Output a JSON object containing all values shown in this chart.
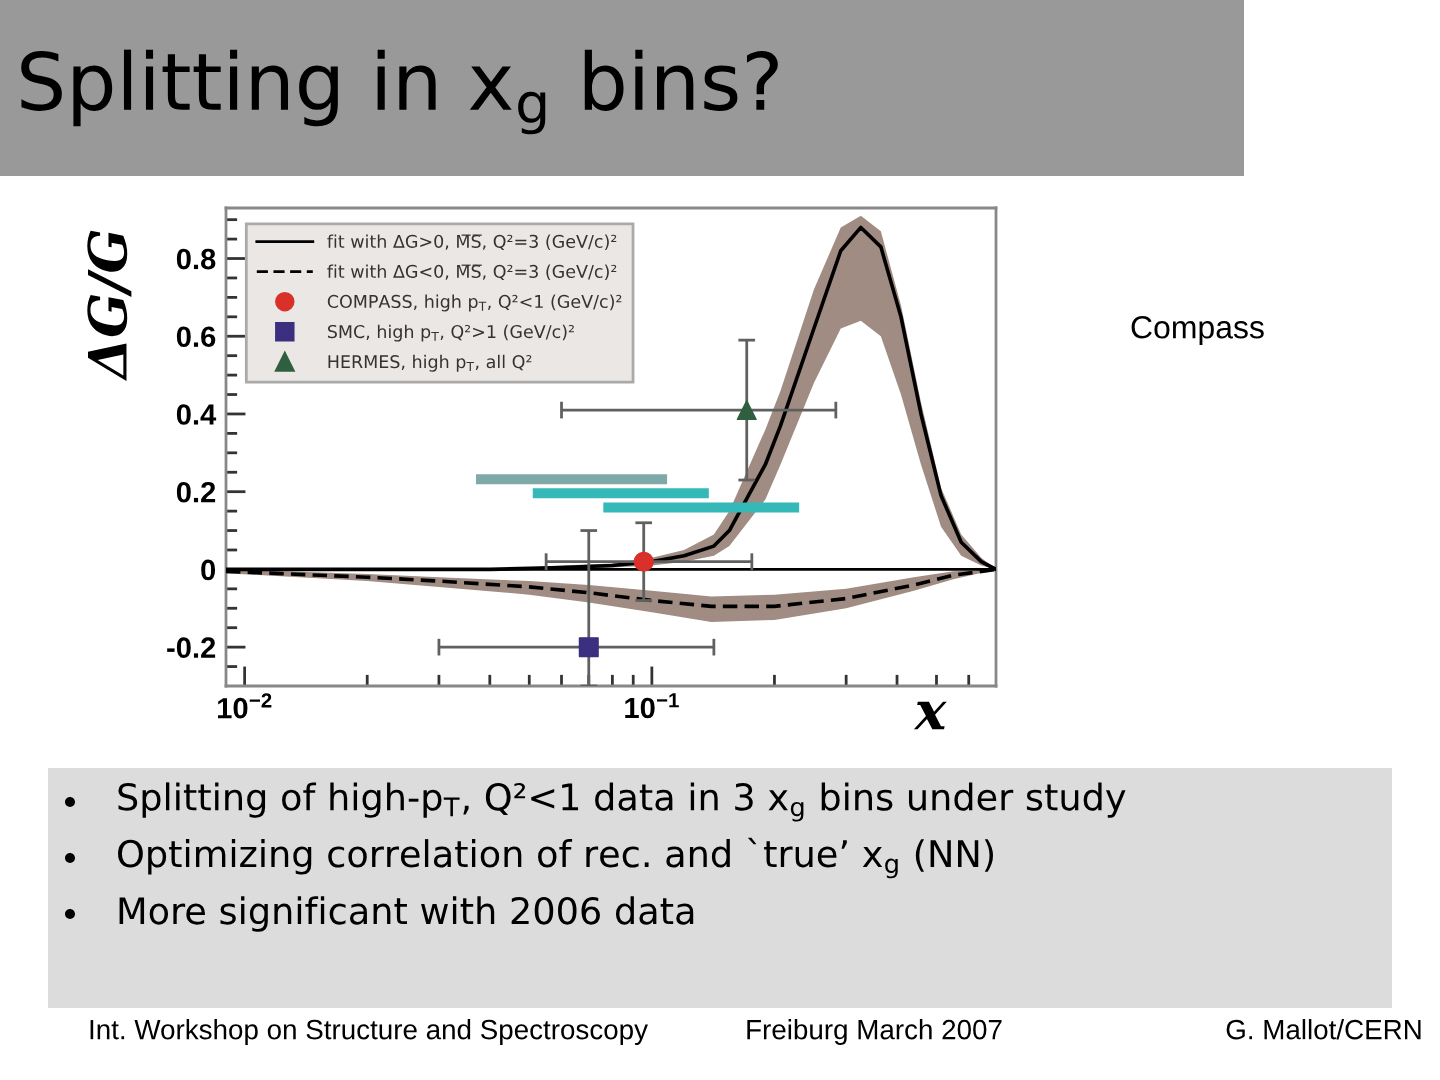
{
  "chart_data": {
    "type": "line",
    "title": "Splitting in x$_{g}$ bins?",
    "ylabel": "ΔG/G",
    "xlabel": "x",
    "log": "x",
    "legend": "top left",
    "grid": false,
    "xlim": [
      0.009,
      0.7
    ],
    "xticks": [
      {
        "value": 0.01,
        "label": "10$^{−2}$"
      },
      {
        "value": 0.02,
        "label": null
      },
      {
        "value": 0.03,
        "label": null
      },
      {
        "value": 0.04,
        "label": null
      },
      {
        "value": 0.05,
        "label": null
      },
      {
        "value": 0.06,
        "label": null
      },
      {
        "value": 0.07,
        "label": null
      },
      {
        "value": 0.08,
        "label": null
      },
      {
        "value": 0.09,
        "label": null
      },
      {
        "value": 0.1,
        "label": "10$^{−1}$"
      },
      {
        "value": 0.2,
        "label": null
      },
      {
        "value": 0.3,
        "label": null
      },
      {
        "value": 0.4,
        "label": null
      },
      {
        "value": 0.5,
        "label": null
      },
      {
        "value": 0.6,
        "label": null
      }
    ],
    "ylim": [
      -0.3,
      0.93
    ],
    "yticks": [
      {
        "value": -0.25,
        "label": null
      },
      -0.2,
      {
        "value": -0.15,
        "label": null
      },
      {
        "value": -0.1,
        "label": null
      },
      {
        "value": -0.05,
        "label": null
      },
      0,
      {
        "value": 0.05,
        "label": null
      },
      {
        "value": 0.1,
        "label": null
      },
      {
        "value": 0.15,
        "label": null
      },
      0.2,
      {
        "value": 0.25,
        "label": null
      },
      {
        "value": 0.3,
        "label": null
      },
      {
        "value": 0.35,
        "label": null
      },
      0.4,
      {
        "value": 0.45,
        "label": null
      },
      {
        "value": 0.5,
        "label": null
      },
      {
        "value": 0.55,
        "label": null
      },
      0.6,
      {
        "value": 0.65,
        "label": null
      },
      {
        "value": 0.7,
        "label": null
      },
      {
        "value": 0.75,
        "label": null
      },
      0.8,
      {
        "value": 0.85,
        "label": null
      },
      {
        "value": 0.9,
        "label": null
      }
    ],
    "ref_lines": [
      {
        "axis": "y",
        "value": 0,
        "color": "#000000",
        "line_style": "solid"
      }
    ],
    "series": [
      {
        "name": "fit with ΔG>0, M̅S̅, Q²=3 (GeV/c)²",
        "type": "line",
        "color": "#000000",
        "line_style": "solid",
        "marker": "none",
        "x": [
          0.009,
          0.02,
          0.04,
          0.06,
          0.08,
          0.1,
          0.12,
          0.142,
          0.155,
          0.19,
          0.207,
          0.25,
          0.291,
          0.326,
          0.365,
          0.409,
          0.458,
          0.513,
          0.575,
          0.644,
          0.7
        ],
        "values": [
          0,
          0,
          0,
          0.005,
          0.01,
          0.02,
          0.035,
          0.06,
          0.1,
          0.27,
          0.37,
          0.62,
          0.82,
          0.88,
          0.83,
          0.65,
          0.4,
          0.19,
          0.07,
          0.02,
          0
        ],
        "lower": [
          0,
          0,
          0,
          0,
          0.005,
          0.01,
          0.02,
          0.035,
          0.06,
          0.18,
          0.27,
          0.48,
          0.62,
          0.64,
          0.6,
          0.45,
          0.27,
          0.11,
          0.035,
          0.01,
          0
        ],
        "upper": [
          0,
          0,
          0,
          0.01,
          0.015,
          0.03,
          0.05,
          0.09,
          0.15,
          0.36,
          0.46,
          0.72,
          0.88,
          0.91,
          0.87,
          0.68,
          0.43,
          0.21,
          0.09,
          0.03,
          0
        ]
      },
      {
        "name": "fit with ΔG<0, M̅S̅, Q²=3 (GeV/c)²",
        "type": "line",
        "color": "#000000",
        "line_style": "dashed",
        "marker": "none",
        "x": [
          0.009,
          0.02,
          0.03,
          0.05,
          0.07,
          0.1,
          0.14,
          0.2,
          0.3,
          0.44,
          0.55,
          0.7
        ],
        "values": [
          -0.005,
          -0.02,
          -0.03,
          -0.045,
          -0.06,
          -0.08,
          -0.095,
          -0.095,
          -0.075,
          -0.04,
          -0.015,
          0
        ],
        "lower": [
          -0.01,
          -0.03,
          -0.045,
          -0.065,
          -0.085,
          -0.11,
          -0.135,
          -0.13,
          -0.1,
          -0.055,
          -0.025,
          0
        ],
        "upper": [
          0,
          -0.012,
          -0.02,
          -0.03,
          -0.04,
          -0.055,
          -0.07,
          -0.065,
          -0.05,
          -0.02,
          -0.005,
          0
        ]
      },
      {
        "name": "COMPASS, high p$_{T}$, Q²<1 (GeV/c)²",
        "type": "scatter",
        "color": "#d9302a",
        "marker": "circle",
        "x": [
          0.0955
        ],
        "values": [
          0.02
        ],
        "errors": [
          0.1
        ],
        "xerrors": [
          [
            0.055,
            0.176
          ]
        ]
      },
      {
        "name": "SMC, high p$_{T}$, Q²>1 (GeV/c)²",
        "type": "scatter",
        "color": "#3b2f7f",
        "marker": "square",
        "x": [
          0.07
        ],
        "values": [
          -0.2
        ],
        "errors": [
          [
            -0.3,
            0.1
          ]
        ],
        "xerrors": [
          [
            0.03,
            0.142
          ]
        ]
      },
      {
        "name": "HERMES, high p$_{T}$, all Q²",
        "type": "scatter",
        "color": "#2f5f3f",
        "marker": "triangle",
        "x": [
          0.171
        ],
        "values": [
          0.41
        ],
        "errors": [
          0.18
        ],
        "xerrors": [
          [
            0.06,
            0.283
          ]
        ]
      },
      {
        "color": "#7fa9a9",
        "line_style": "solid",
        "marker": "none",
        "x": [
          0.037,
          0.109
        ],
        "values": [
          0.232,
          0.232
        ]
      },
      {
        "color": "#35b8b8",
        "line_style": "solid",
        "marker": "none",
        "x": [
          0.051,
          0.138
        ],
        "values": [
          0.196,
          0.196
        ]
      },
      {
        "color": "#35b8b8",
        "line_style": "solid",
        "marker": "none",
        "x": [
          0.076,
          0.23
        ],
        "values": [
          0.159,
          0.159
        ]
      }
    ],
    "annotations": [
      "Compass",
      "Splitting of high-p$_{T}$, Q²<1 data in 3 x$_{g}$ bins under study",
      "Optimizing correlation of rec. and `true’ x$_{g}$ (NN)",
      "More significant with 2006 data",
      "Int. Workshop on Structure and Spectroscopy",
      "Freiburg March 2007",
      "G. Mallot/CERN"
    ]
  }
}
